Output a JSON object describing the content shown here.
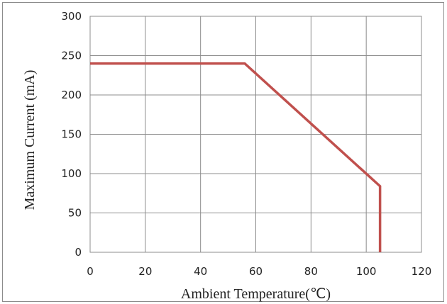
{
  "chart_data": {
    "type": "line",
    "xlabel": "Ambient Temperature(℃)",
    "ylabel": "Maximum Current (mA)",
    "xlim": [
      0,
      120
    ],
    "ylim": [
      0,
      300
    ],
    "x_ticks": [
      0,
      20,
      40,
      60,
      80,
      100,
      120
    ],
    "y_ticks": [
      0,
      50,
      100,
      150,
      200,
      250,
      300
    ],
    "grid": true,
    "series": [
      {
        "color": "#c0504d",
        "points": [
          [
            0,
            240
          ],
          [
            56,
            240
          ],
          [
            105,
            84
          ],
          [
            105,
            0
          ]
        ]
      }
    ]
  }
}
